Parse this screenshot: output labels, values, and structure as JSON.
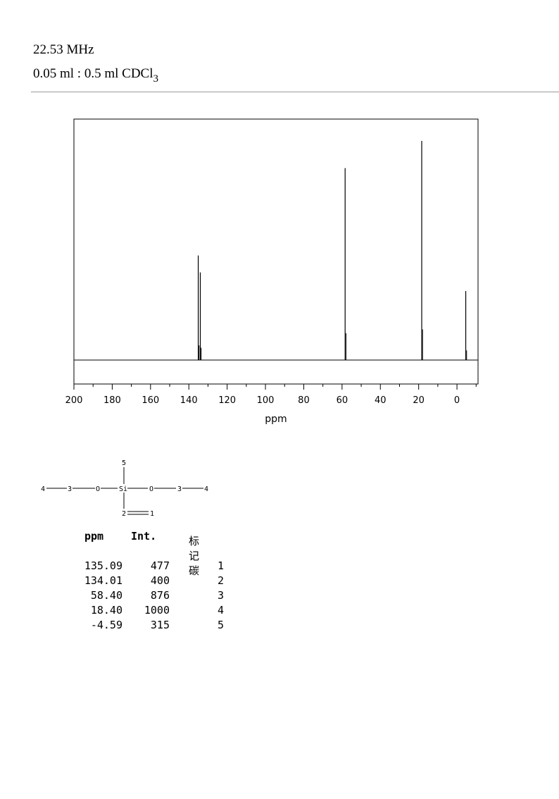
{
  "header": {
    "frequency": "22.53 MHz",
    "solvent_prefix": "0.05 ml : 0.5 ml CDCl",
    "solvent_sub": "3"
  },
  "chart_data": {
    "type": "line",
    "xlabel": "ppm",
    "xlim": [
      200,
      -11
    ],
    "x_ticks": [
      200,
      180,
      160,
      140,
      120,
      100,
      80,
      60,
      40,
      20,
      0
    ],
    "x_tick_labels": [
      "200",
      "180",
      "160",
      "140",
      "120",
      "100",
      "80",
      "60",
      "40",
      "20",
      "0"
    ],
    "grid": false,
    "peaks": [
      {
        "ppm": 135.09,
        "intensity": 477
      },
      {
        "ppm": 134.01,
        "intensity": 400
      },
      {
        "ppm": 58.4,
        "intensity": 876
      },
      {
        "ppm": 18.4,
        "intensity": 1000
      },
      {
        "ppm": -4.59,
        "intensity": 315
      }
    ]
  },
  "structure": {
    "atoms": [
      "4",
      "3",
      "O",
      "Si",
      "O",
      "3",
      "4",
      "5",
      "2",
      "1"
    ]
  },
  "table": {
    "headers": {
      "ppm": "ppm",
      "int": "Int.",
      "assign": "标记碳"
    },
    "rows": [
      {
        "ppm": "135.09",
        "int": "477",
        "assign": "1"
      },
      {
        "ppm": "134.01",
        "int": "400",
        "assign": "2"
      },
      {
        "ppm": "58.40",
        "int": "876",
        "assign": "3"
      },
      {
        "ppm": "18.40",
        "int": "1000",
        "assign": "4"
      },
      {
        "ppm": "-4.59",
        "int": "315",
        "assign": "5"
      }
    ]
  }
}
